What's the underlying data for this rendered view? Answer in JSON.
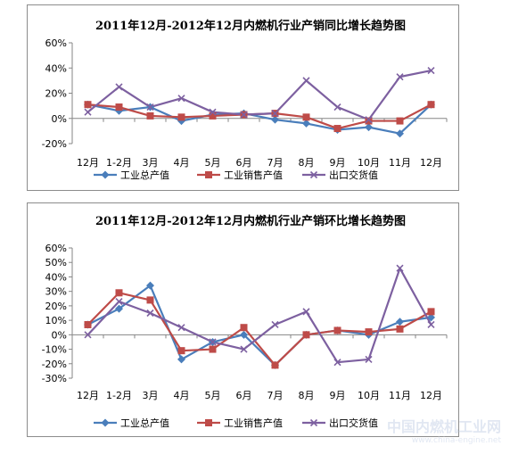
{
  "chart_data": [
    {
      "type": "line",
      "title": "2011年12月-2012年12月内燃机行业产销同比增长趋势图",
      "categories": [
        "12月",
        "1-2月",
        "3月",
        "4月",
        "5月",
        "6月",
        "7月",
        "8月",
        "9月",
        "10月",
        "11月",
        "12月"
      ],
      "ylim": [
        -20,
        60
      ],
      "yticks": [
        "60%",
        "40%",
        "20%",
        "0%",
        "-20%"
      ],
      "ytick_values": [
        60,
        40,
        20,
        0,
        -20
      ],
      "series": [
        {
          "name": "工业总产值",
          "color": "#4a7ebb",
          "marker": "diamond",
          "values": [
            11,
            6,
            9,
            -2,
            3,
            4,
            -1,
            -4,
            -9,
            -7,
            -12,
            11
          ]
        },
        {
          "name": "工业销售产值",
          "color": "#be4b48",
          "marker": "square",
          "values": [
            11,
            9,
            2,
            1,
            2,
            3,
            4,
            1,
            -8,
            -2,
            -2,
            11
          ]
        },
        {
          "name": "出口交货值",
          "color": "#7d60a0",
          "marker": "x",
          "values": [
            5,
            25,
            9,
            16,
            5,
            3,
            4,
            30,
            9,
            -1,
            33,
            38
          ]
        }
      ]
    },
    {
      "type": "line",
      "title": "2011年12月-2012年12月内燃机行业产销环比增长趋势图",
      "categories": [
        "12月",
        "1-2月",
        "3月",
        "4月",
        "5月",
        "6月",
        "7月",
        "8月",
        "9月",
        "10月",
        "11月",
        "12月"
      ],
      "ylim": [
        -30,
        60
      ],
      "yticks": [
        "60%",
        "50%",
        "40%",
        "30%",
        "20%",
        "10%",
        "0%",
        "-10%",
        "-20%",
        "-30%"
      ],
      "ytick_values": [
        60,
        50,
        40,
        30,
        20,
        10,
        0,
        -10,
        -20,
        -30
      ],
      "series": [
        {
          "name": "工业总产值",
          "color": "#4a7ebb",
          "marker": "diamond",
          "values": [
            7,
            18,
            34,
            -17,
            -5,
            0,
            -21,
            0,
            3,
            0,
            9,
            12
          ]
        },
        {
          "name": "工业销售产值",
          "color": "#be4b48",
          "marker": "square",
          "values": [
            7,
            29,
            24,
            -11,
            -10,
            5,
            -21,
            0,
            3,
            2,
            4,
            16
          ]
        },
        {
          "name": "出口交货值",
          "color": "#7d60a0",
          "marker": "x",
          "values": [
            0,
            23,
            15,
            5,
            -5,
            -10,
            7,
            16,
            -19,
            -17,
            46,
            7
          ]
        }
      ]
    }
  ],
  "watermark": {
    "main": "中国内燃机工业网",
    "sub": "www.china-engine.net"
  }
}
